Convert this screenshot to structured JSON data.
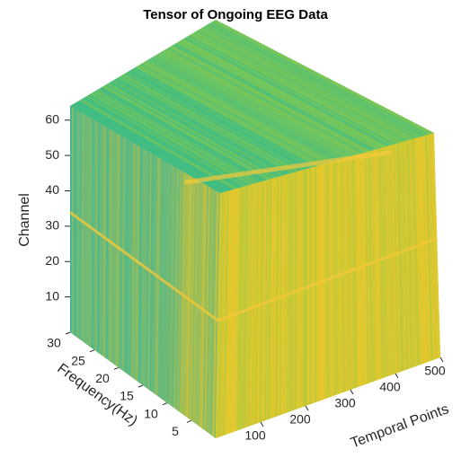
{
  "chart_data": {
    "type": "cube",
    "title": "Tensor of Ongoing EEG Data",
    "xlabel": "Temporal Points",
    "ylabel": "Frequency(Hz)",
    "zlabel": "Channel",
    "xlim": [
      0,
      500
    ],
    "xticks": [
      100,
      200,
      300,
      400,
      500
    ],
    "ylim": [
      0,
      30
    ],
    "yticks": [
      5,
      10,
      15,
      20,
      25,
      30
    ],
    "zlim": [
      0,
      64
    ],
    "zticks": [
      10,
      20,
      30,
      40,
      50,
      60
    ]
  }
}
